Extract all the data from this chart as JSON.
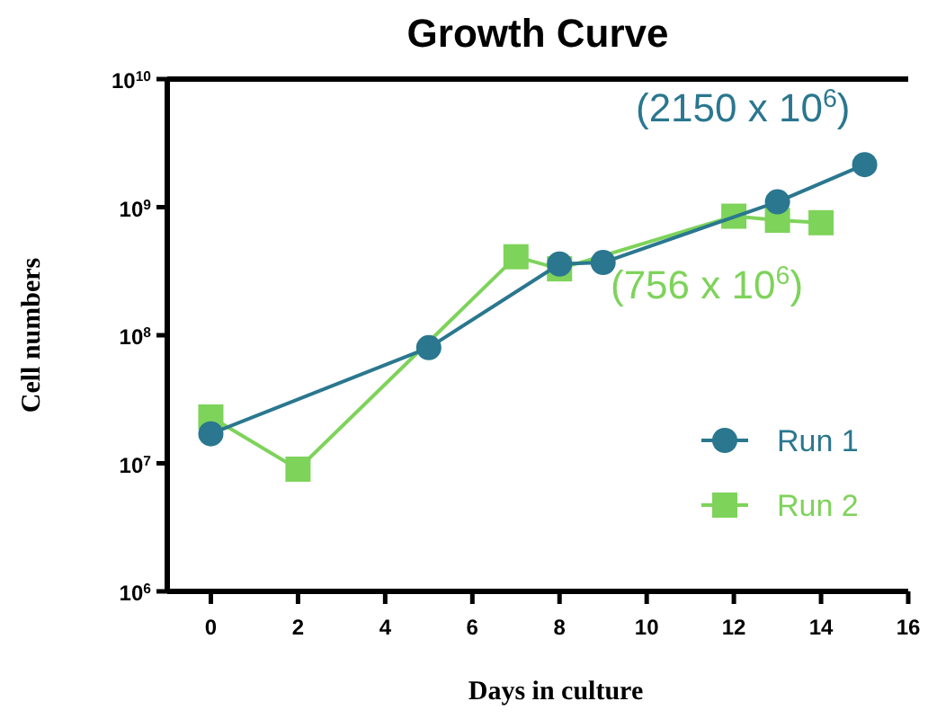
{
  "chart_data": {
    "type": "line",
    "title": "Growth Curve",
    "xlabel": "Days in culture",
    "ylabel": "Cell numbers",
    "log": "y",
    "xlim": [
      -1,
      16
    ],
    "xticks": [
      0,
      2,
      4,
      6,
      8,
      10,
      12,
      14,
      16
    ],
    "ylim": [
      1000000,
      10000000000
    ],
    "yticks": [
      {
        "value": 1000000,
        "label": "10$^{6}$"
      },
      {
        "value": 10000000,
        "label": "10$^{7}$"
      },
      {
        "value": 100000000,
        "label": "10$^{8}$"
      },
      {
        "value": 1000000000,
        "label": "10$^{9}$"
      },
      {
        "value": 10000000000,
        "label": "10$^{10}$"
      }
    ],
    "legend": "right",
    "grid": false,
    "line_style": "solid",
    "series": [
      {
        "name": "Run 1",
        "color": "#2a778f",
        "marker": "circle",
        "x": [
          0,
          5,
          8,
          9,
          13,
          15
        ],
        "values": [
          17000000,
          80000000,
          360000000,
          370000000,
          1100000000,
          2150000000
        ]
      },
      {
        "name": "Run 2",
        "color": "#7ed35a",
        "marker": "square",
        "x": [
          0,
          2,
          7,
          8,
          12,
          13,
          14
        ],
        "values": [
          23000000,
          9000000,
          410000000,
          330000000,
          850000000,
          790000000,
          756000000
        ]
      }
    ],
    "annotations": [
      {
        "text": "(2150 x 10$^{6}$)",
        "x": 15,
        "y": 2150000000
      },
      {
        "text": "(756 x 10$^{6}$)",
        "x": 14,
        "y": 756000000
      }
    ]
  }
}
